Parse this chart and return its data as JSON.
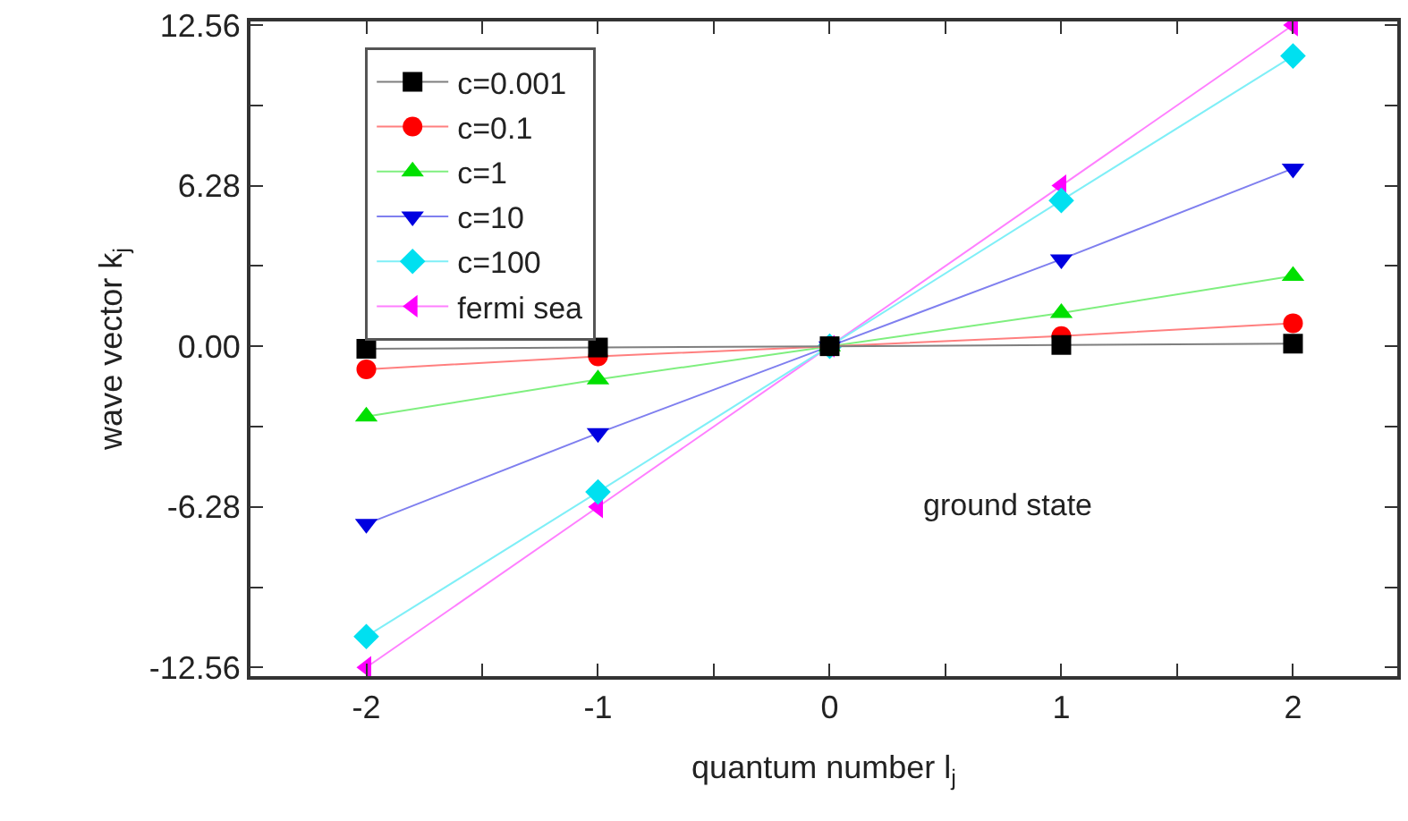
{
  "chart_data": {
    "type": "line",
    "xlabel": "quantum number l$_{j}$",
    "ylabel": "wave vector k$_{j}$",
    "x": [
      -2,
      -1,
      0,
      1,
      2
    ],
    "series": [
      {
        "name": "c=0.001",
        "color": "#000000",
        "marker": "square",
        "values": [
          -0.1,
          -0.05,
          0,
          0.05,
          0.1
        ]
      },
      {
        "name": "c=0.1",
        "color": "#ff0000",
        "marker": "circle",
        "values": [
          -0.9,
          -0.4,
          0,
          0.4,
          0.9
        ]
      },
      {
        "name": "c=1",
        "color": "#00e000",
        "marker": "triangle",
        "values": [
          -2.75,
          -1.3,
          0,
          1.3,
          2.75
        ]
      },
      {
        "name": "c=10",
        "color": "#0000e0",
        "marker": "triangle-down",
        "values": [
          -6.95,
          -3.4,
          0,
          3.4,
          6.95
        ]
      },
      {
        "name": "c=100",
        "color": "#00e0f0",
        "marker": "diamond",
        "values": [
          -11.35,
          -5.7,
          0,
          5.7,
          11.35
        ]
      },
      {
        "name": "fermi sea",
        "color": "#ff00ff",
        "marker": "triangle-left",
        "values": [
          -12.56,
          -6.28,
          0,
          6.28,
          12.56
        ]
      }
    ],
    "xlim": [
      -2.5,
      2.45
    ],
    "xticks": [
      -2,
      {
        "value": -1.5,
        "label": null
      },
      -1,
      {
        "value": -0.5,
        "label": null
      },
      0,
      {
        "value": 0.5,
        "label": null
      },
      1,
      {
        "value": 1.5,
        "label": null
      },
      2
    ],
    "ylim": [
      -12.9,
      12.7
    ],
    "yticks": [
      {
        "value": -12.56,
        "label": "-12.56"
      },
      {
        "value": -9.42,
        "label": null
      },
      {
        "value": -6.28,
        "label": "-6.28"
      },
      {
        "value": -3.14,
        "label": null
      },
      {
        "value": 0,
        "label": "0.00"
      },
      {
        "value": 3.14,
        "label": null
      },
      {
        "value": 6.28,
        "label": "6.28"
      },
      {
        "value": 9.42,
        "label": null
      },
      {
        "value": 12.56,
        "label": "12.56"
      }
    ],
    "annotations": [
      "ground state"
    ],
    "legend": "top left"
  }
}
